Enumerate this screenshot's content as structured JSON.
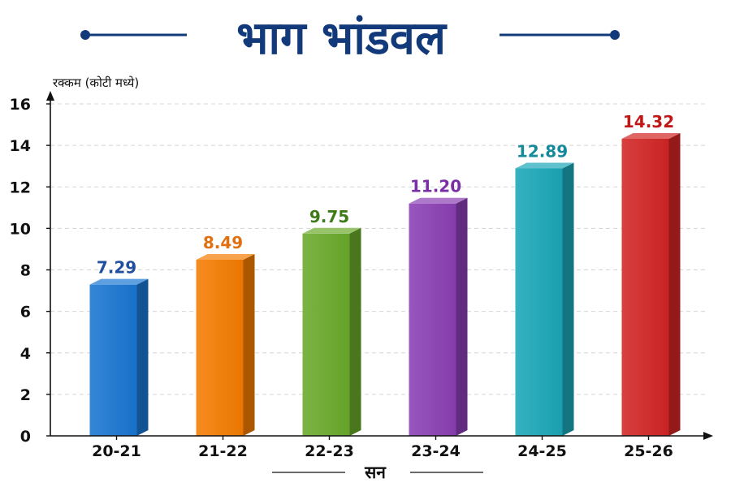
{
  "colors": {
    "title": "#123a7a",
    "axis": "#111111",
    "grid": "#d5d5d5",
    "bars": [
      "#1976d2",
      "#f57c00",
      "#6aaa2a",
      "#8b3fb5",
      "#1aa7b8",
      "#d32525"
    ],
    "labels": [
      "#1f4f9e",
      "#e07010",
      "#3d7a1a",
      "#7a2fa5",
      "#148a9a",
      "#c01818"
    ]
  },
  "chart_data": {
    "type": "bar",
    "title": "भाग भांडवल",
    "ylabel": "रक्कम (कोटी मध्ये)",
    "xlabel": "सन",
    "categories": [
      "20-21",
      "21-22",
      "22-23",
      "23-24",
      "24-25",
      "25-26"
    ],
    "values": [
      7.29,
      8.49,
      9.75,
      11.2,
      12.89,
      14.32
    ],
    "value_labels": [
      "7.29",
      "8.49",
      "9.75",
      "11.20",
      "12.89",
      "14.32"
    ],
    "ylim": [
      0,
      16
    ],
    "yticks": [
      "0",
      "2",
      "4",
      "6",
      "8",
      "10",
      "12",
      "14",
      "16"
    ],
    "grid": true,
    "legend": "none"
  }
}
